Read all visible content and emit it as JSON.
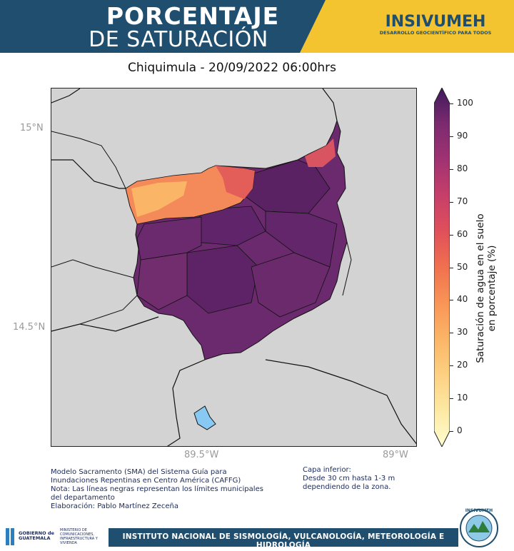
{
  "header": {
    "title_line1": "PORCENTAJE",
    "title_line2": "DE SATURACIÓN",
    "logo_name": "INSIVUMEH",
    "logo_tagline": "DESARROLLO GEOCIENTÍFICO PARA TODOS",
    "bg_color": "#1f4e6e",
    "accent_color": "#f4c430"
  },
  "subtitle": "Chiquimula - 20/09/2022  06:00hrs",
  "map": {
    "lat_labels": [
      "15°N",
      "14.5°N"
    ],
    "lon_labels": [
      "89.5°W",
      "89°W"
    ],
    "background_color": "#d3d3d3",
    "lake_color": "#87c9f2"
  },
  "colorbar": {
    "label": "Saturación de agua en el suelo en porcentaje (%)",
    "ticks": [
      "100",
      "90",
      "80",
      "70",
      "60",
      "50",
      "40",
      "30",
      "20",
      "10",
      "0"
    ],
    "min": 0,
    "max": 100,
    "colormap": "magma_r-like",
    "colors": [
      "#fffed0",
      "#fde9a4",
      "#fdd182",
      "#fbb567",
      "#f99557",
      "#f0714f",
      "#e0505a",
      "#c63f6a",
      "#a03272",
      "#7c2a6f",
      "#5b2267",
      "#3f1a5c"
    ]
  },
  "notes": {
    "left": "Modelo Sacramento (SMA) del Sistema Guía para Inundaciones Repentinas en Centro América (CAFFG)\nNota: Las líneas negras representan los límites municipales del departamento\nElaboración: Pablo Martínez Zeceña",
    "right": "Capa inferior:\nDesde 30 cm hasta 1-3 m dependiendo de la zona."
  },
  "footer": {
    "institute": "INSTITUTO NACIONAL DE SISMOLOGÍA, VULCANOLOGÍA, METEOROLOGÍA E HIDROLOGÍA",
    "gov_name": "GOBIERNO de GUATEMALA",
    "ministry": "MINISTERIO DE COMUNICACIONES, INFRAESTRUCTURA Y VIVIENDA",
    "seal_text": "INSIVUMEH"
  }
}
